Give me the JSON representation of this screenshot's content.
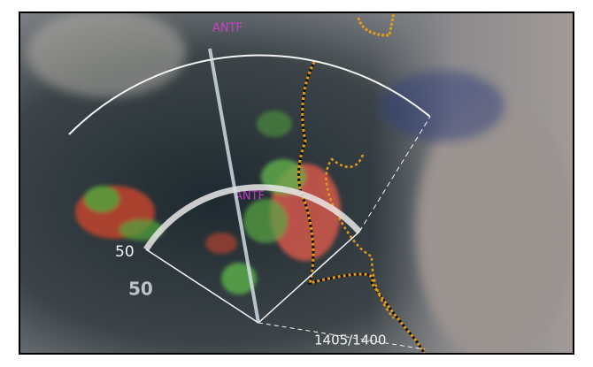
{
  "labels": {
    "range": "50",
    "display_range": "50",
    "flight_levels": "1405/1400"
  }
}
